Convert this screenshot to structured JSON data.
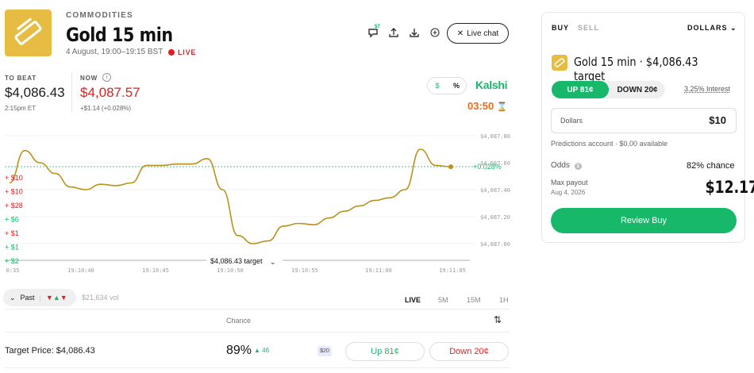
{
  "header": {
    "category": "COMMODITIES",
    "title": "Gold 15 min",
    "date": "4 August, 19:00–19:15 BST",
    "live_label": "LIVE",
    "comment_count": "57",
    "live_chat_label": "Live chat"
  },
  "stats": {
    "to_beat_label": "TO BEAT",
    "to_beat_value": "$4,086.43",
    "to_beat_time": "2:15pm ET",
    "now_label": "NOW",
    "now_value": "$4,087.57",
    "now_change": "+$1.14 (+0.028%)"
  },
  "display_toggle": {
    "dollar": "$",
    "percent": "%"
  },
  "brand": "Kalshi",
  "timer": "03:50",
  "chart": {
    "current_change": "+0.028%",
    "target_label": "$4,086.43 target",
    "y_ticks": [
      "$4,087.80",
      "$4,087.60",
      "$4,087.40",
      "$4,087.20",
      "$4,087.00"
    ],
    "x_ticks": [
      "0:35",
      "19:10:40",
      "19:10:45",
      "19:10:50",
      "19:10:55",
      "19:11:00",
      "19:11:05"
    ],
    "trades": [
      {
        "text": "+ $10",
        "side": "down"
      },
      {
        "text": "+ $10",
        "side": "down"
      },
      {
        "text": "+ $28",
        "side": "down"
      },
      {
        "text": "+ $6",
        "side": "up"
      },
      {
        "text": "+ $1",
        "side": "down"
      },
      {
        "text": "+ $1",
        "side": "up"
      },
      {
        "text": "+ $2",
        "side": "up"
      }
    ]
  },
  "chart_data": {
    "type": "line",
    "series": [
      {
        "values": [
          4087.45,
          4087.69,
          4087.6,
          4087.52,
          4087.42,
          4087.4,
          4087.44,
          4087.43,
          4087.45,
          4087.58,
          4087.58,
          4087.59,
          4087.59,
          4087.63,
          4087.4,
          4087.06,
          4087.0,
          4087.02,
          4087.13,
          4087.15,
          4087.14,
          4087.19,
          4087.24,
          4087.28,
          4087.32,
          4087.34,
          4087.4,
          4087.7,
          4087.58,
          4087.57
        ]
      }
    ],
    "target": 4086.43,
    "ylim": [
      4087.0,
      4087.8
    ],
    "yticks": [
      "$4,087.80",
      "$4,087.60",
      "$4,087.40",
      "$4,087.20",
      "$4,087.00"
    ],
    "xticks": [
      "0:35",
      "19:10:40",
      "19:10:45",
      "19:10:50",
      "19:10:55",
      "19:11:00",
      "19:11:05"
    ],
    "color": "#b8921a"
  },
  "controls": {
    "past_label": "Past",
    "volume": "$21,634 vol",
    "timeframes": [
      "LIVE",
      "5M",
      "15M",
      "1H"
    ],
    "chance_header": "Chance"
  },
  "row": {
    "label": "Target Price: $4,086.43",
    "chance": "89%",
    "delta": "▲ 46",
    "tag": "$20",
    "up": "Up 81¢",
    "down": "Down 20¢"
  },
  "panel": {
    "buy": "BUY",
    "sell": "SELL",
    "currency": "DOLLARS",
    "title": "Gold 15 min · $4,086.43 target",
    "up": "UP 81¢",
    "down": "DOWN 20¢",
    "interest": "3.25% Interest",
    "amount_label": "Dollars",
    "amount_value": "$10",
    "account": "Predictions account · $0.00 available",
    "odds_label": "Odds",
    "odds_value": "82% chance",
    "max_label": "Max payout",
    "max_date": "Aug 4, 2026",
    "payout": "$12.17",
    "review": "Review Buy"
  },
  "colors": {
    "green": "#17b86a",
    "red": "#e02020",
    "gold": "#e6bd42",
    "orange": "#e86a1a",
    "line": "#b8921a"
  }
}
